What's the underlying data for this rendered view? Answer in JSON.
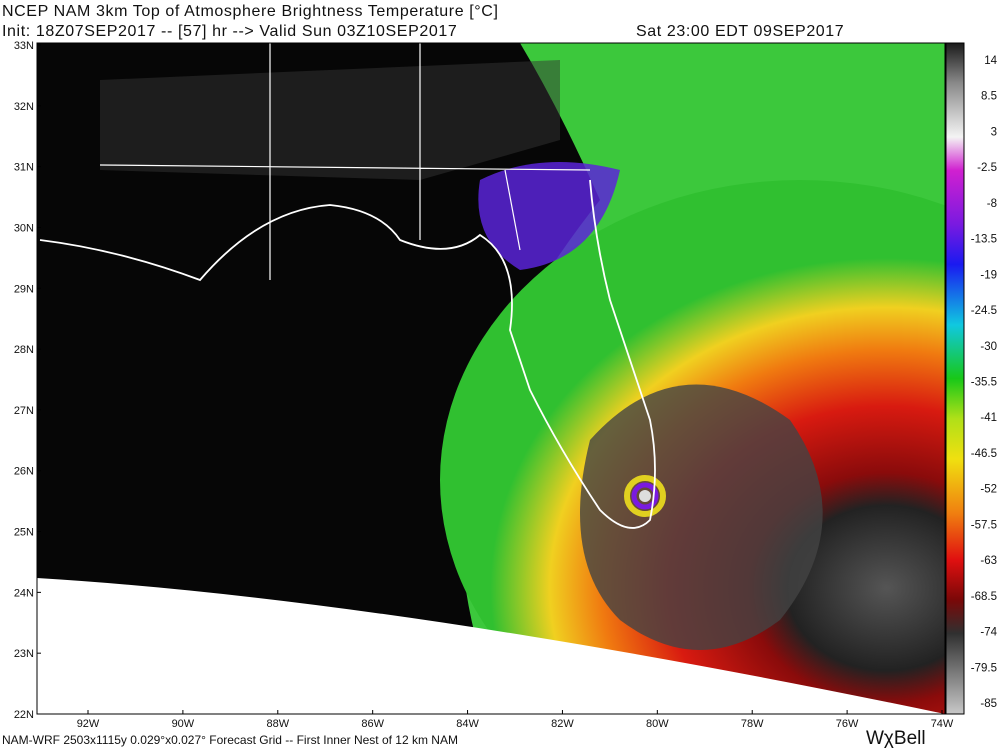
{
  "header": {
    "title": "NCEP NAM 3km Top of Atmosphere Brightness Temperature [°C]",
    "init": "Init: 18Z07SEP2017 -- [57] hr --> Valid Sun 03Z10SEP2017",
    "valid_local": "Sat 23:00 EDT 09SEP2017"
  },
  "lat_labels": [
    "33N",
    "32N",
    "31N",
    "30N",
    "29N",
    "28N",
    "27N",
    "26N",
    "25N",
    "24N",
    "23N",
    "22N"
  ],
  "lon_labels": [
    "92W",
    "90W",
    "88W",
    "86W",
    "84W",
    "82W",
    "80W",
    "78W",
    "76W",
    "74W"
  ],
  "colorbar": {
    "labels": [
      "14",
      "8.5",
      "3",
      "-2.5",
      "-8",
      "-13.5",
      "-19",
      "-24.5",
      "-30",
      "-35.5",
      "-41",
      "-46.5",
      "-52",
      "-57.5",
      "-63",
      "-68.5",
      "-74",
      "-79.5",
      "-85"
    ]
  },
  "footer": "NAM-WRF 2503x1115y 0.029°x0.027° Forecast Grid -- First Inner Nest of 12 km NAM",
  "logo": "WχBell"
}
